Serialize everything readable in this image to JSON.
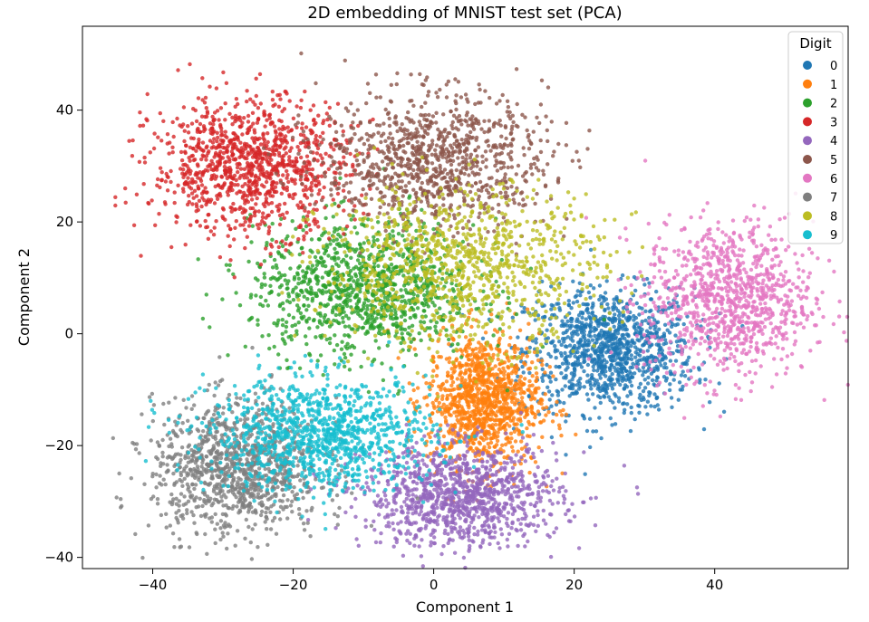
{
  "chart_data": {
    "type": "scatter",
    "title": "2D embedding of MNIST test set (PCA)",
    "xlabel": "Component 1",
    "ylabel": "Component 2",
    "xlim": [
      -50,
      59
    ],
    "ylim": [
      -42,
      55
    ],
    "xticks": [
      -40,
      -20,
      0,
      20,
      40
    ],
    "yticks": [
      -40,
      -20,
      0,
      20,
      40
    ],
    "xtick_labels": [
      "−40",
      "−20",
      "0",
      "20",
      "40"
    ],
    "ytick_labels": [
      "−40",
      "−20",
      "0",
      "20",
      "40"
    ],
    "grid": false,
    "legend": {
      "title": "Digit",
      "placement": "top-right"
    },
    "series": [
      {
        "name": "0",
        "color": "#1f77b4",
        "center": [
          25,
          -3
        ],
        "spread": [
          6,
          5.5
        ],
        "count": 1100
      },
      {
        "name": "1",
        "color": "#ff7f0e",
        "center": [
          7,
          -12
        ],
        "spread": [
          4,
          6
        ],
        "count": 1100
      },
      {
        "name": "2",
        "color": "#2ca02c",
        "center": [
          -10,
          8
        ],
        "spread": [
          8,
          6
        ],
        "count": 1100
      },
      {
        "name": "3",
        "color": "#d62728",
        "center": [
          -26,
          30
        ],
        "spread": [
          7,
          6
        ],
        "count": 1100
      },
      {
        "name": "4",
        "color": "#9467bd",
        "center": [
          4,
          -29
        ],
        "spread": [
          7,
          4.5
        ],
        "count": 1100
      },
      {
        "name": "5",
        "color": "#8c564b",
        "center": [
          0,
          31
        ],
        "spread": [
          8,
          6
        ],
        "count": 1000
      },
      {
        "name": "6",
        "color": "#e377c2",
        "center": [
          42,
          6
        ],
        "spread": [
          6,
          7
        ],
        "count": 1000
      },
      {
        "name": "7",
        "color": "#7f7f7f",
        "center": [
          -28,
          -24
        ],
        "spread": [
          6,
          6
        ],
        "count": 1100
      },
      {
        "name": "8",
        "color": "#bcbd22",
        "center": [
          4,
          12
        ],
        "spread": [
          10,
          7
        ],
        "count": 1000
      },
      {
        "name": "9",
        "color": "#17becf",
        "center": [
          -16,
          -18
        ],
        "spread": [
          8,
          5
        ],
        "count": 1100
      }
    ]
  }
}
